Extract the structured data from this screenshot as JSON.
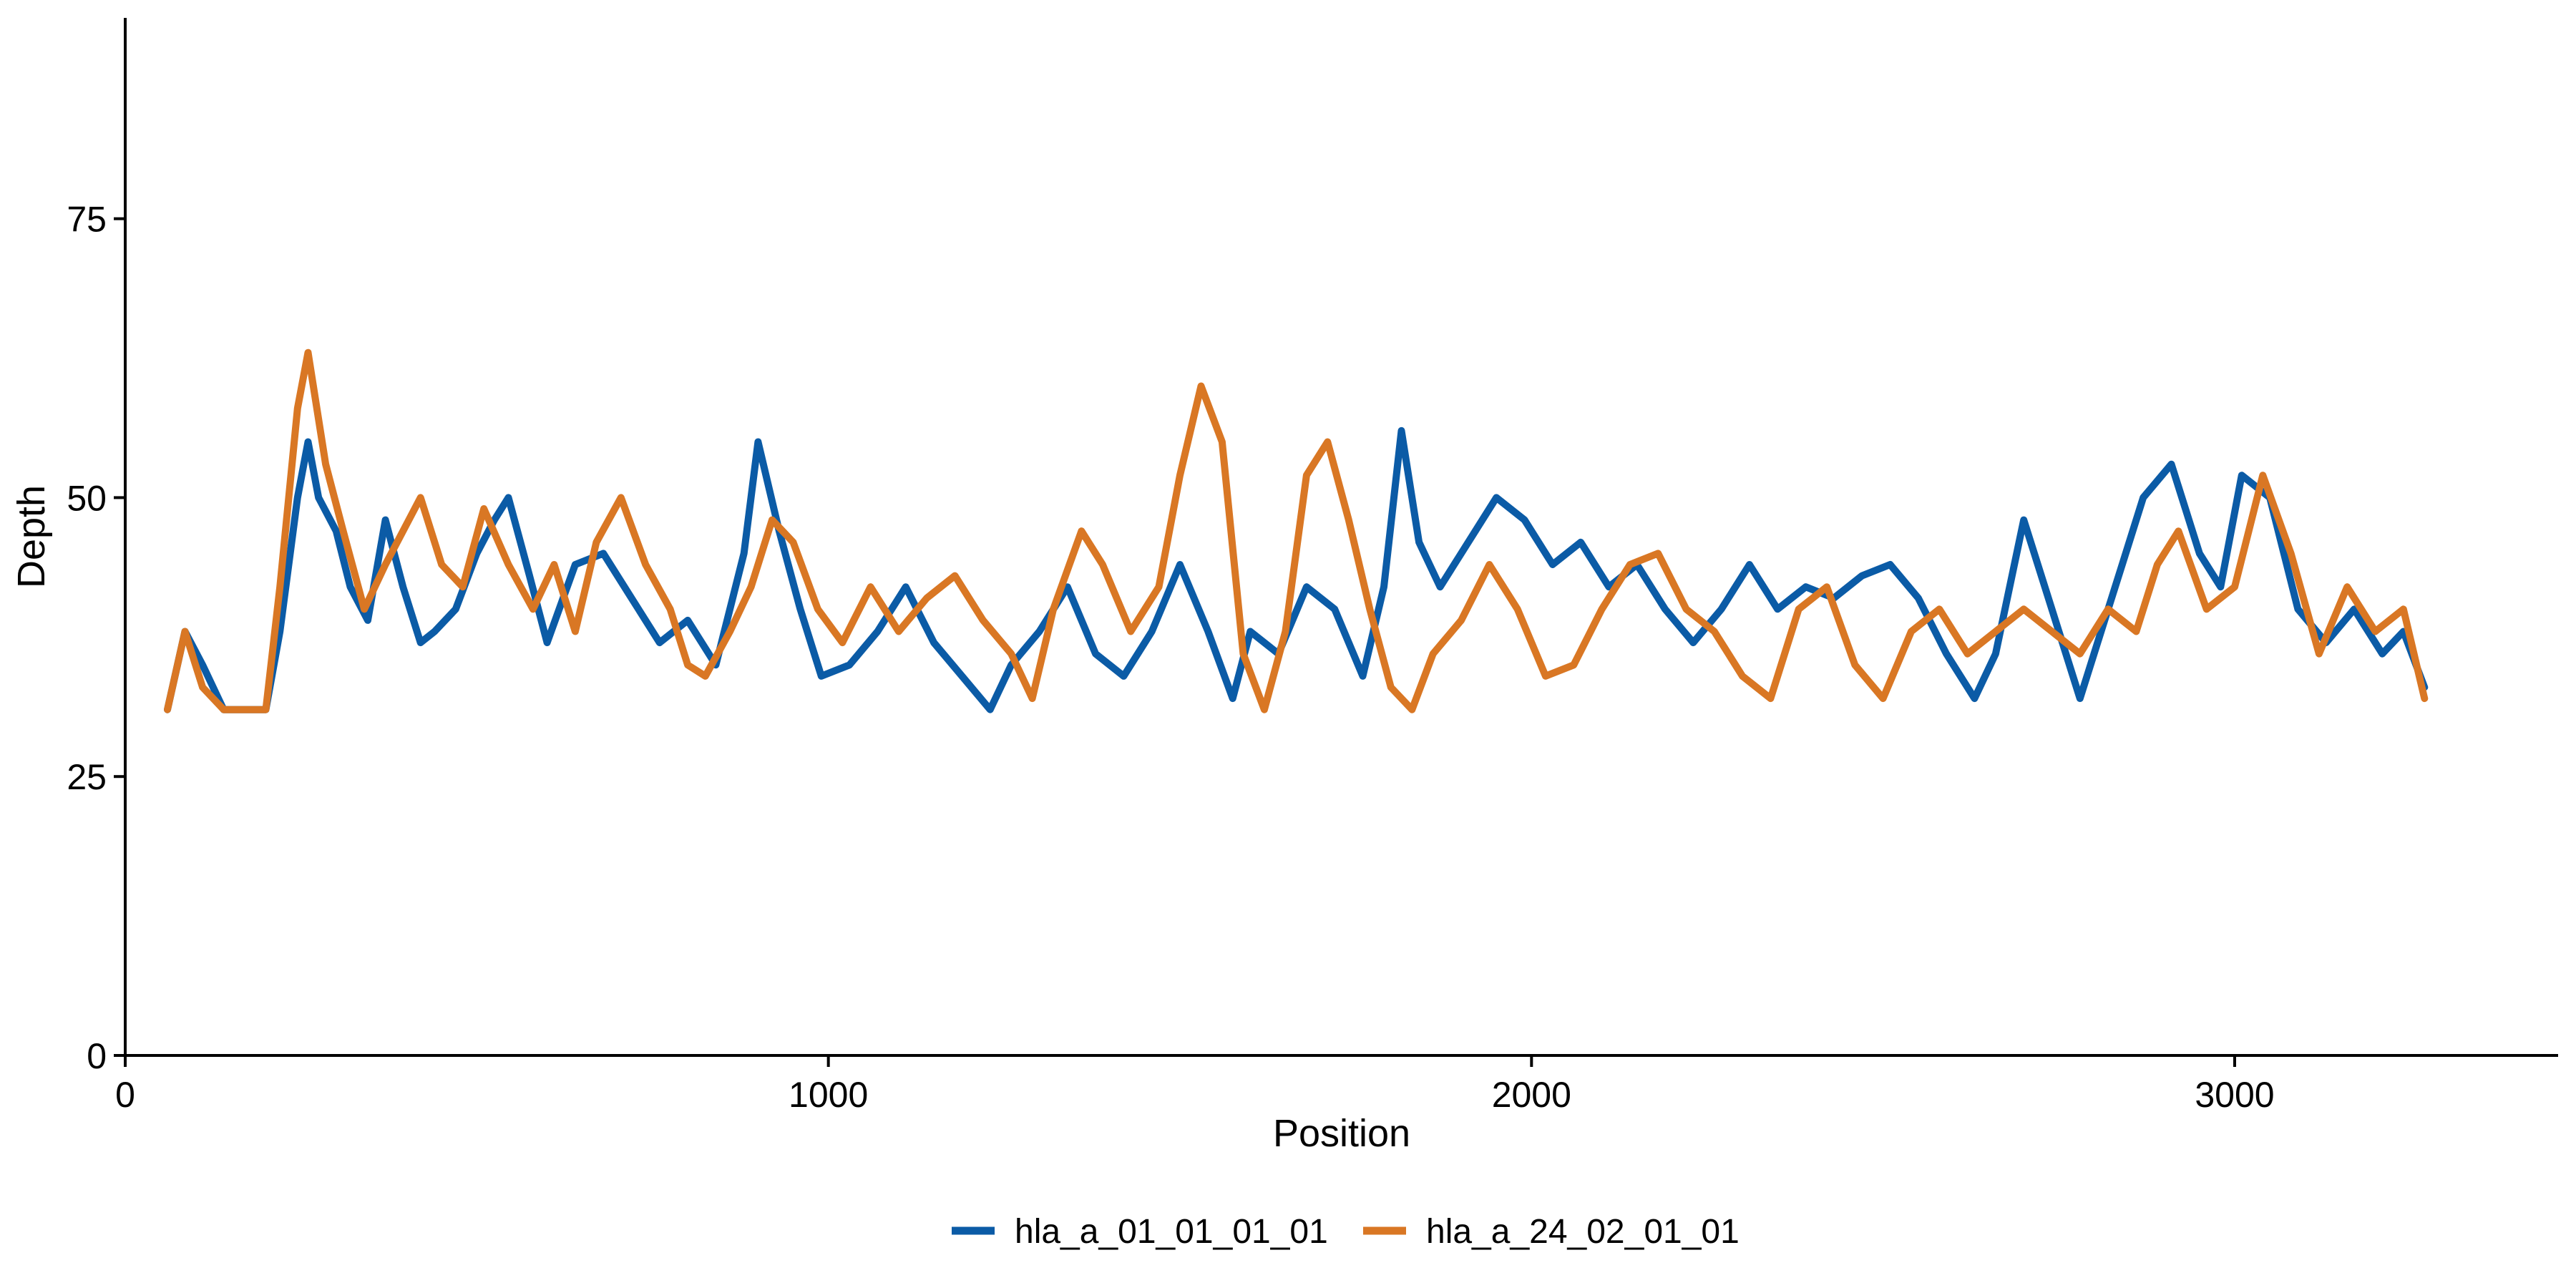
{
  "chart_data": {
    "type": "line",
    "title": "",
    "xlabel": "Position",
    "ylabel": "Depth",
    "xlim": [
      0,
      3460
    ],
    "ylim": [
      0,
      93
    ],
    "x_ticks": [
      0,
      1000,
      2000,
      3000
    ],
    "x_tick_labels": [
      "0",
      "1000",
      "2000",
      "3000"
    ],
    "y_ticks": [
      0,
      25,
      50,
      75
    ],
    "y_tick_labels": [
      "0",
      "25",
      "50",
      "75"
    ],
    "grid": false,
    "legend_position": "bottom",
    "series": [
      {
        "name": "hla_a_01_01_01_01",
        "color": "#0b5ba6",
        "x": [
          60,
          85,
          110,
          140,
          200,
          220,
          245,
          260,
          275,
          300,
          320,
          345,
          370,
          395,
          420,
          440,
          470,
          500,
          525,
          545,
          575,
          600,
          640,
          680,
          720,
          760,
          800,
          840,
          880,
          900,
          930,
          960,
          990,
          1030,
          1070,
          1110,
          1150,
          1190,
          1230,
          1260,
          1300,
          1340,
          1380,
          1420,
          1460,
          1500,
          1540,
          1575,
          1600,
          1640,
          1680,
          1720,
          1760,
          1790,
          1815,
          1840,
          1870,
          1910,
          1950,
          1990,
          2030,
          2070,
          2110,
          2150,
          2190,
          2230,
          2270,
          2310,
          2350,
          2390,
          2430,
          2470,
          2510,
          2550,
          2590,
          2630,
          2660,
          2700,
          2740,
          2780,
          2810,
          2840,
          2870,
          2910,
          2950,
          2980,
          3010,
          3050,
          3090,
          3130,
          3170,
          3210,
          3240,
          3270
        ],
        "values": [
          31,
          38,
          35,
          31,
          31,
          38,
          50,
          55,
          50,
          47,
          42,
          39,
          48,
          42,
          37,
          38,
          40,
          45,
          48,
          50,
          43,
          37,
          44,
          45,
          41,
          37,
          39,
          35,
          45,
          55,
          47,
          40,
          34,
          35,
          38,
          42,
          37,
          34,
          31,
          35,
          38,
          42,
          36,
          34,
          38,
          44,
          38,
          32,
          38,
          36,
          42,
          40,
          34,
          42,
          56,
          46,
          42,
          46,
          50,
          48,
          44,
          46,
          42,
          44,
          40,
          37,
          40,
          44,
          40,
          42,
          41,
          43,
          44,
          41,
          36,
          32,
          36,
          48,
          40,
          32,
          38,
          44,
          50,
          53,
          45,
          42,
          52,
          50,
          40,
          37,
          40,
          36,
          38,
          33
        ]
      },
      {
        "name": "hla_a_24_02_01_01",
        "color": "#d97724",
        "x": [
          60,
          85,
          110,
          140,
          200,
          220,
          245,
          260,
          285,
          310,
          340,
          370,
          395,
          420,
          450,
          480,
          510,
          545,
          580,
          610,
          640,
          670,
          705,
          740,
          775,
          800,
          825,
          860,
          890,
          920,
          950,
          985,
          1020,
          1060,
          1100,
          1140,
          1180,
          1220,
          1260,
          1290,
          1320,
          1360,
          1390,
          1430,
          1470,
          1500,
          1530,
          1560,
          1590,
          1620,
          1650,
          1680,
          1710,
          1740,
          1770,
          1800,
          1830,
          1860,
          1900,
          1940,
          1980,
          2020,
          2060,
          2100,
          2140,
          2180,
          2220,
          2260,
          2300,
          2340,
          2380,
          2420,
          2460,
          2500,
          2540,
          2580,
          2620,
          2660,
          2700,
          2740,
          2780,
          2820,
          2860,
          2890,
          2920,
          2960,
          3000,
          3040,
          3080,
          3120,
          3160,
          3200,
          3240,
          3270
        ],
        "values": [
          31,
          38,
          33,
          31,
          31,
          42,
          58,
          63,
          53,
          47,
          40,
          44,
          47,
          50,
          44,
          42,
          49,
          44,
          40,
          44,
          38,
          46,
          50,
          44,
          40,
          35,
          34,
          38,
          42,
          48,
          46,
          40,
          37,
          42,
          38,
          41,
          43,
          39,
          36,
          32,
          40,
          47,
          44,
          38,
          42,
          52,
          60,
          55,
          36,
          31,
          38,
          52,
          55,
          48,
          40,
          33,
          31,
          36,
          39,
          44,
          40,
          34,
          35,
          40,
          44,
          45,
          40,
          38,
          34,
          32,
          40,
          42,
          35,
          32,
          38,
          40,
          36,
          38,
          40,
          38,
          36,
          40,
          38,
          44,
          47,
          40,
          42,
          52,
          45,
          36,
          42,
          38,
          40,
          32
        ]
      }
    ]
  }
}
